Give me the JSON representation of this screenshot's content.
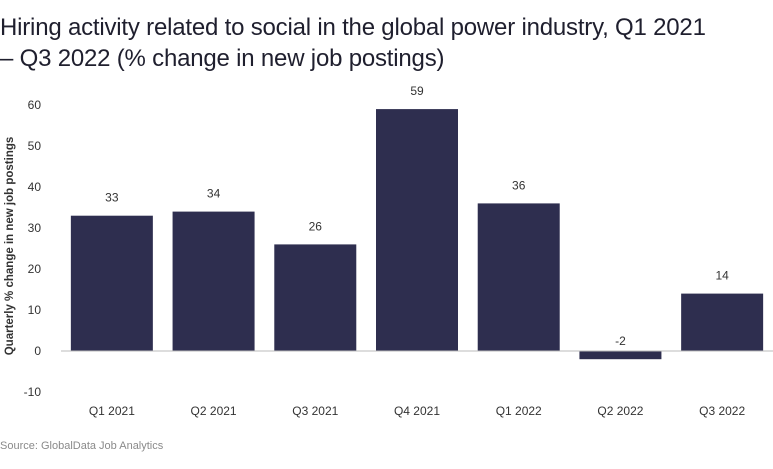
{
  "chart_data": {
    "type": "bar",
    "title": "Hiring activity related to social in the global power industry, Q1 2021 – Q3 2022 (% change in new job postings)",
    "xlabel": "",
    "ylabel": "Quarterly % change in new job postings",
    "categories": [
      "Q1 2021",
      "Q2 2021",
      "Q3 2021",
      "Q4 2021",
      "Q1 2022",
      "Q2 2022",
      "Q3 2022"
    ],
    "values": [
      33,
      34,
      26,
      59,
      36,
      -2,
      14
    ],
    "data_labels": [
      "33",
      "34",
      "26",
      "59",
      "36",
      "-2",
      "14"
    ],
    "ylim": [
      -10,
      60
    ],
    "yticks": [
      "-10",
      "0",
      "10",
      "20",
      "30",
      "40",
      "50",
      "60"
    ],
    "grid": false,
    "legend": "none",
    "bar_color": "#2e2e4f",
    "source": "Source: GlobalData Job Analytics"
  }
}
